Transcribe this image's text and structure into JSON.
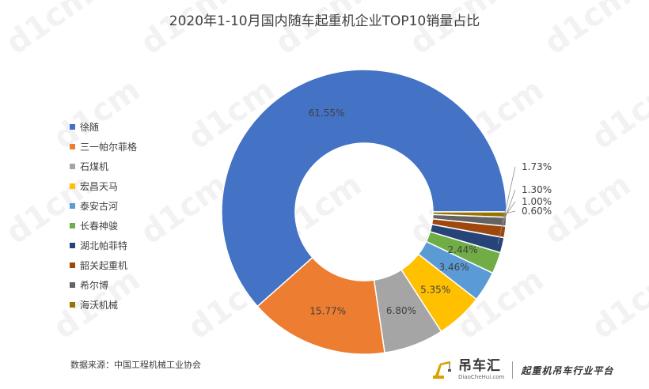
{
  "title": "2020年1-10月国内随车起重机企业TOP10销量占比",
  "source_note": "数据来源：中国工程机械工业协会",
  "brand": {
    "name_cn": "吊车汇",
    "domain": "DiaoCheHui.com",
    "slogan": "起重机吊车行业平台"
  },
  "chart_data": {
    "type": "pie",
    "style": "donut",
    "title": "2020年1-10月国内随车起重机企业TOP10销量占比",
    "legend_position": "left",
    "categories": [
      "徐随",
      "三一帕尔菲格",
      "石煤机",
      "宏昌天马",
      "泰安古河",
      "长春神骏",
      "湖北帕菲特",
      "韶关起重机",
      "希尔博",
      "海沃机械"
    ],
    "values": [
      61.55,
      15.77,
      6.8,
      5.35,
      3.46,
      2.44,
      1.73,
      1.3,
      1.0,
      0.6
    ],
    "labels": [
      "61.55%",
      "15.77%",
      "6.80%",
      "5.35%",
      "3.46%",
      "2.44%",
      "1.73%",
      "1.30%",
      "1.00%",
      "0.60%"
    ],
    "colors": [
      "#4472C4",
      "#ED7D31",
      "#A5A5A5",
      "#FFC000",
      "#5B9BD5",
      "#70AD47",
      "#264478",
      "#9E480E",
      "#636363",
      "#997300"
    ]
  }
}
